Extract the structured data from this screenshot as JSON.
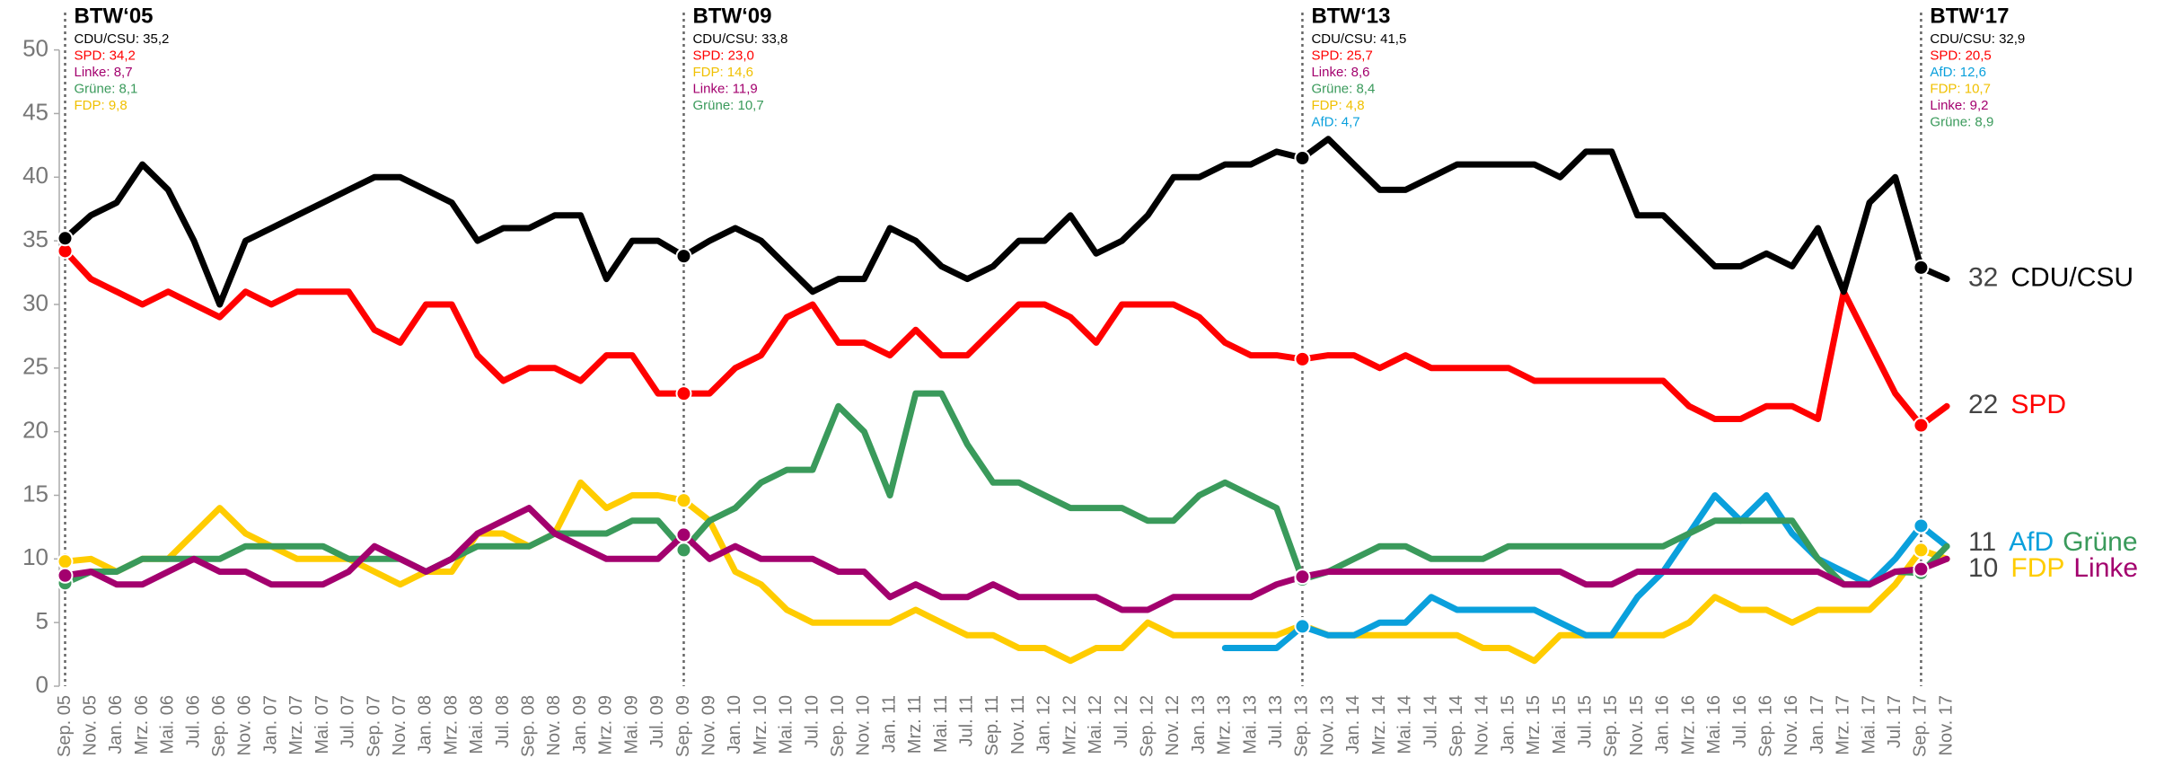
{
  "chart_data": {
    "type": "line",
    "categories": [
      "Sep. 05",
      "Nov. 05",
      "Jan. 06",
      "Mrz. 06",
      "Mai. 06",
      "Jul. 06",
      "Sep. 06",
      "Nov. 06",
      "Jan. 07",
      "Mrz. 07",
      "Mai. 07",
      "Jul. 07",
      "Sep. 07",
      "Nov. 07",
      "Jan. 08",
      "Mrz. 08",
      "Mai. 08",
      "Jul. 08",
      "Sep. 08",
      "Nov. 08",
      "Jan. 09",
      "Mrz. 09",
      "Mai. 09",
      "Jul. 09",
      "Sep. 09",
      "Nov. 09",
      "Jan. 10",
      "Mrz. 10",
      "Mai. 10",
      "Jul. 10",
      "Sep. 10",
      "Nov. 10",
      "Jan. 11",
      "Mrz. 11",
      "Mai. 11",
      "Jul. 11",
      "Sep. 11",
      "Nov. 11",
      "Jan. 12",
      "Mrz. 12",
      "Mai. 12",
      "Jul. 12",
      "Sep. 12",
      "Nov. 12",
      "Jan. 13",
      "Mrz. 13",
      "Mai. 13",
      "Jul. 13",
      "Sep. 13",
      "Nov. 13",
      "Jan. 14",
      "Mrz. 14",
      "Mai. 14",
      "Jul. 14",
      "Sep. 14",
      "Nov. 14",
      "Jan. 15",
      "Mrz. 15",
      "Mai. 15",
      "Jul. 15",
      "Sep. 15",
      "Nov. 15",
      "Jan. 16",
      "Mrz. 16",
      "Mai. 16",
      "Jul. 16",
      "Sep. 16",
      "Nov. 16",
      "Jan. 17",
      "Mrz. 17",
      "Mai. 17",
      "Jul. 17",
      "Sep. 17",
      "Nov. 17"
    ],
    "series": [
      {
        "name": "CDU/CSU",
        "color": "#000000",
        "values": [
          35.2,
          37,
          38,
          41,
          39,
          35,
          30,
          35,
          36,
          37,
          38,
          39,
          40,
          40,
          39,
          38,
          35,
          36,
          36,
          37,
          37,
          32,
          35,
          35,
          33.8,
          35,
          36,
          35,
          33,
          31,
          32,
          32,
          36,
          35,
          33,
          32,
          33,
          35,
          35,
          37,
          34,
          35,
          37,
          40,
          40,
          41,
          41,
          42,
          41.5,
          43,
          41,
          39,
          39,
          40,
          41,
          41,
          41,
          41,
          40,
          42,
          42,
          37,
          37,
          35,
          33,
          33,
          34,
          33,
          36,
          31,
          38,
          40,
          32.9,
          32
        ]
      },
      {
        "name": "SPD",
        "color": "#ff0000",
        "values": [
          34.2,
          32,
          31,
          30,
          31,
          30,
          29,
          31,
          30,
          31,
          31,
          31,
          28,
          27,
          30,
          30,
          26,
          24,
          25,
          25,
          24,
          26,
          26,
          23,
          23,
          23,
          25,
          26,
          29,
          30,
          27,
          27,
          26,
          28,
          26,
          26,
          28,
          30,
          30,
          29,
          27,
          30,
          30,
          30,
          29,
          27,
          26,
          26,
          25.7,
          26,
          26,
          25,
          26,
          25,
          25,
          25,
          25,
          24,
          24,
          24,
          24,
          24,
          24,
          22,
          21,
          21,
          22,
          22,
          21,
          31,
          27,
          23,
          20.5,
          22
        ]
      },
      {
        "name": "Grüne",
        "color": "#3a9a5b",
        "values": [
          8.1,
          9,
          9,
          10,
          10,
          10,
          10,
          11,
          11,
          11,
          11,
          10,
          10,
          10,
          9,
          10,
          11,
          11,
          11,
          12,
          12,
          12,
          13,
          13,
          10.7,
          13,
          14,
          16,
          17,
          17,
          22,
          20,
          15,
          23,
          23,
          19,
          16,
          16,
          15,
          14,
          14,
          14,
          13,
          13,
          15,
          16,
          15,
          14,
          8.4,
          9,
          10,
          11,
          11,
          10,
          10,
          10,
          11,
          11,
          11,
          11,
          11,
          11,
          11,
          12,
          13,
          13,
          13,
          13,
          10,
          8,
          8,
          9,
          8.9,
          11
        ]
      },
      {
        "name": "Linke",
        "color": "#a3006e",
        "values": [
          8.7,
          9,
          8,
          8,
          9,
          10,
          9,
          9,
          8,
          8,
          8,
          9,
          11,
          10,
          9,
          10,
          12,
          13,
          14,
          12,
          11,
          10,
          10,
          10,
          11.9,
          10,
          11,
          10,
          10,
          10,
          9,
          9,
          7,
          8,
          7,
          7,
          8,
          7,
          7,
          7,
          7,
          6,
          6,
          7,
          7,
          7,
          7,
          8,
          8.6,
          9,
          9,
          9,
          9,
          9,
          9,
          9,
          9,
          9,
          9,
          8,
          8,
          9,
          9,
          9,
          9,
          9,
          9,
          9,
          9,
          8,
          8,
          9,
          9.2,
          10
        ]
      },
      {
        "name": "FDP",
        "color": "#ffcc00",
        "values": [
          9.8,
          10,
          9,
          10,
          10,
          12,
          14,
          12,
          11,
          10,
          10,
          10,
          9,
          8,
          9,
          9,
          12,
          12,
          11,
          12,
          16,
          14,
          15,
          15,
          14.6,
          13,
          9,
          8,
          6,
          5,
          5,
          5,
          5,
          6,
          5,
          4,
          4,
          3,
          3,
          2,
          3,
          3,
          5,
          4,
          4,
          4,
          4,
          4,
          4.8,
          4,
          4,
          4,
          4,
          4,
          4,
          3,
          3,
          2,
          4,
          4,
          4,
          4,
          4,
          5,
          7,
          6,
          6,
          5,
          6,
          6,
          6,
          8,
          10.7,
          10
        ]
      },
      {
        "name": "AfD",
        "color": "#0aa0dc",
        "values": [
          null,
          null,
          null,
          null,
          null,
          null,
          null,
          null,
          null,
          null,
          null,
          null,
          null,
          null,
          null,
          null,
          null,
          null,
          null,
          null,
          null,
          null,
          null,
          null,
          null,
          null,
          null,
          null,
          null,
          null,
          null,
          null,
          null,
          null,
          null,
          null,
          null,
          null,
          null,
          null,
          null,
          null,
          null,
          null,
          null,
          3,
          3,
          3,
          4.7,
          4,
          4,
          5,
          5,
          7,
          6,
          6,
          6,
          6,
          5,
          4,
          4,
          7,
          9,
          12,
          15,
          13,
          15,
          12,
          10,
          9,
          8,
          10,
          12.6,
          11
        ]
      }
    ],
    "ylim": [
      0,
      50
    ],
    "yticks": [
      0,
      5,
      10,
      15,
      20,
      25,
      30,
      35,
      40,
      45,
      50
    ],
    "annotations": [
      {
        "title": "BTW‘05",
        "at": "Sep. 05",
        "lines": [
          {
            "text": "CDU/CSU: 35,2",
            "color": "#000000"
          },
          {
            "text": "SPD: 34,2",
            "color": "#ff0000"
          },
          {
            "text": "Linke: 8,7",
            "color": "#a3006e"
          },
          {
            "text": "Grüne: 8,1",
            "color": "#3a9a5b"
          },
          {
            "text": "FDP: 9,8",
            "color": "#f0c000"
          }
        ]
      },
      {
        "title": "BTW‘09",
        "at": "Sep. 09",
        "lines": [
          {
            "text": "CDU/CSU: 33,8",
            "color": "#000000"
          },
          {
            "text": "SPD: 23,0",
            "color": "#ff0000"
          },
          {
            "text": "FDP: 14,6",
            "color": "#f0c000"
          },
          {
            "text": "Linke: 11,9",
            "color": "#a3006e"
          },
          {
            "text": "Grüne: 10,7",
            "color": "#3a9a5b"
          }
        ]
      },
      {
        "title": "BTW‘13",
        "at": "Sep. 13",
        "lines": [
          {
            "text": "CDU/CSU: 41,5",
            "color": "#000000"
          },
          {
            "text": "SPD: 25,7",
            "color": "#ff0000"
          },
          {
            "text": "Linke: 8,6",
            "color": "#a3006e"
          },
          {
            "text": "Grüne: 8,4",
            "color": "#3a9a5b"
          },
          {
            "text": "FDP: 4,8",
            "color": "#f0c000"
          },
          {
            "text": "AfD: 4,7",
            "color": "#0aa0dc"
          }
        ]
      },
      {
        "title": "BTW‘17",
        "at": "Sep. 17",
        "lines": [
          {
            "text": "CDU/CSU: 32,9",
            "color": "#000000"
          },
          {
            "text": "SPD: 20,5",
            "color": "#ff0000"
          },
          {
            "text": "AfD: 12,6",
            "color": "#0aa0dc"
          },
          {
            "text": "FDP: 10,7",
            "color": "#f0c000"
          },
          {
            "text": "Linke: 9,2",
            "color": "#a3006e"
          },
          {
            "text": "Grüne: 8,9",
            "color": "#3a9a5b"
          }
        ]
      }
    ]
  }
}
